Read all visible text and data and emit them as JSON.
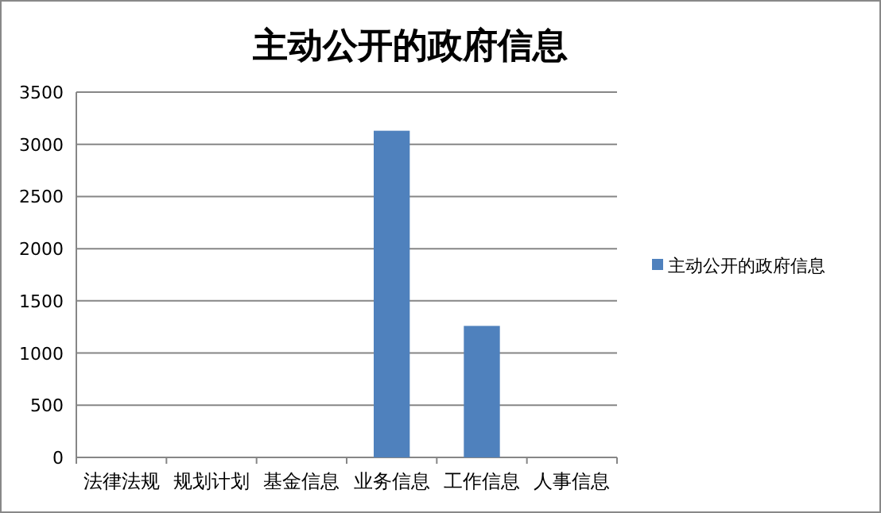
{
  "chart_data": {
    "type": "bar",
    "title": "主动公开的政府信息",
    "categories": [
      "法律法规",
      "规划计划",
      "基金信息",
      "业务信息",
      "工作信息",
      "人事信息"
    ],
    "series": [
      {
        "name": "主动公开的政府信息",
        "color": "#4f81bd",
        "values": [
          0,
          0,
          0,
          3130,
          1260,
          0
        ]
      }
    ],
    "ylim": [
      0,
      3500
    ],
    "yticks": [
      0,
      500,
      1000,
      1500,
      2000,
      2500,
      3000,
      3500
    ],
    "grid": "y",
    "legend": "right"
  }
}
